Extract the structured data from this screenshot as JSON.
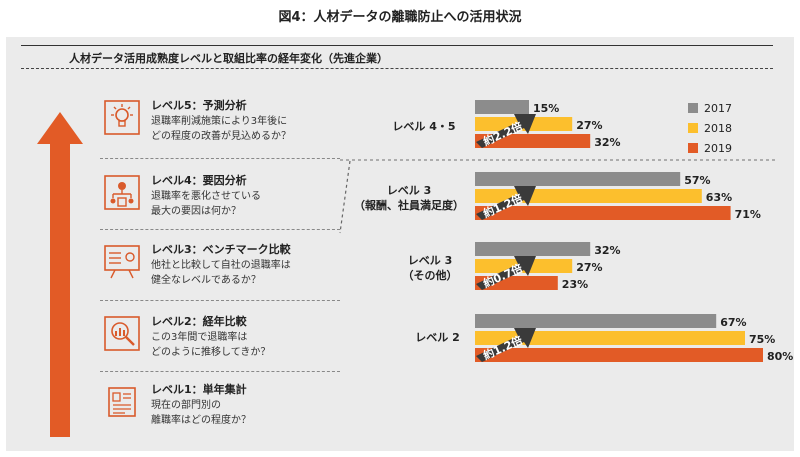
{
  "figure_title": "図4：人材データの離職防止への活用状況",
  "subtitle": "人材データ活用成熟度レベルと取組比率の経年変化（先進企業）",
  "colors": {
    "y2017": "#8c8c8c",
    "y2018": "#fcbf2d",
    "y2019": "#e25b26",
    "arrow": "#e25b26",
    "panel": "#ebebeb",
    "icon": "#d95a2b"
  },
  "levels": [
    {
      "name": "レベル5：予測分析",
      "desc1": "退職率削減施策により3年後に",
      "desc2": "どの程度の改善が見込めるか？",
      "icon": "lightbulb-icon"
    },
    {
      "name": "レベル4：要因分析",
      "desc1": "退職率を悪化させている",
      "desc2": "最大の要因は何か？",
      "icon": "hierarchy-icon"
    },
    {
      "name": "レベル3：ベンチマーク比較",
      "desc1": "他社と比較して自社の退職率は",
      "desc2": "健全なレベルであるか？",
      "icon": "presentation-board-icon"
    },
    {
      "name": "レベル2：経年比較",
      "desc1": "この3年間で退職率は",
      "desc2": "どのように推移してきか？",
      "icon": "magnifier-chart-icon"
    },
    {
      "name": "レベル1：単年集計",
      "desc1": "現在の部門別の",
      "desc2": "離職率はどの程度か？",
      "icon": "document-icon"
    }
  ],
  "chart_data": {
    "type": "bar",
    "orientation": "horizontal",
    "categories": [
      {
        "line1": "レベル 4・5",
        "line2": ""
      },
      {
        "line1": "レベル 3",
        "line2": "（報酬、社員満足度）"
      },
      {
        "line1": "レベル 3",
        "line2": "（その他）"
      },
      {
        "line1": "レベル 2",
        "line2": ""
      }
    ],
    "series": [
      {
        "name": "2017",
        "values": [
          15,
          57,
          32,
          67
        ],
        "labels": [
          "15%",
          "57%",
          "32%",
          "67%"
        ],
        "color": "#8c8c8c"
      },
      {
        "name": "2018",
        "values": [
          27,
          63,
          27,
          75
        ],
        "labels": [
          "27%",
          "63%",
          "27%",
          "75%"
        ],
        "color": "#fcbf2d"
      },
      {
        "name": "2019",
        "values": [
          32,
          71,
          23,
          80
        ],
        "labels": [
          "32%",
          "71%",
          "23%",
          "80%"
        ],
        "color": "#e25b26"
      }
    ],
    "ratio_annotations": [
      "約2.2倍",
      "約1.2倍",
      "約0.7倍",
      "約1.2倍"
    ],
    "legend_position": "top-right",
    "unit": "%",
    "xlim": [
      0,
      100
    ],
    "grid": false
  }
}
